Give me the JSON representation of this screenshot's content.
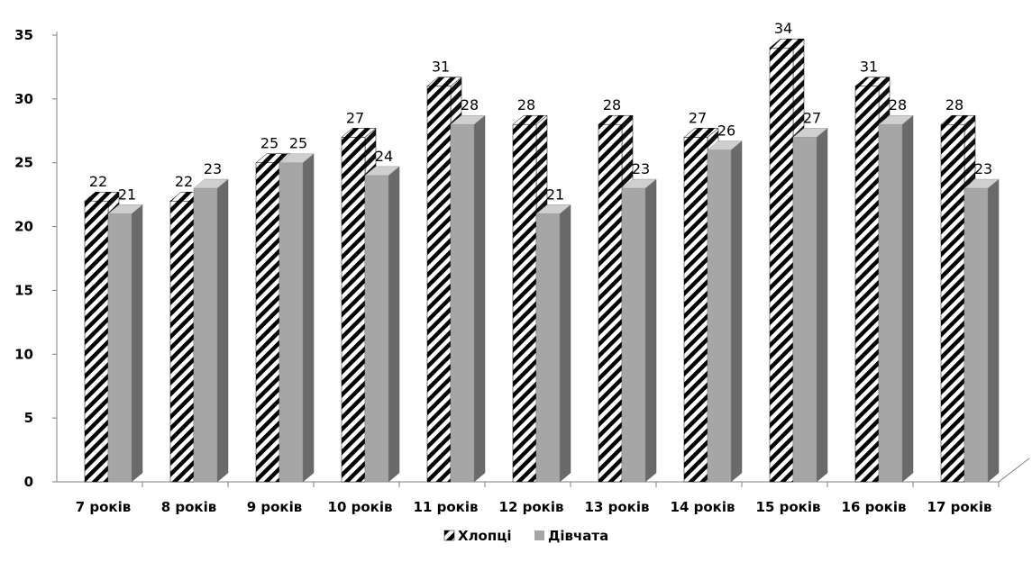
{
  "chart_data": {
    "type": "bar",
    "categories": [
      "7 років",
      "8 років",
      "9 років",
      "10 років",
      "11 років",
      "12 років",
      "13 років",
      "14 років",
      "15 років",
      "16 років",
      "17 років"
    ],
    "series": [
      {
        "name": "Хлопці",
        "values": [
          22,
          22,
          25,
          27,
          31,
          28,
          28,
          27,
          34,
          31,
          28
        ],
        "pattern": "diagonal-hatch",
        "color": "#000000"
      },
      {
        "name": "Дівчата",
        "values": [
          21,
          23,
          25,
          24,
          28,
          21,
          23,
          26,
          27,
          28,
          23
        ],
        "color": "#a6a6a6"
      }
    ],
    "yticks": [
      "0",
      "5",
      "10",
      "15",
      "20",
      "25",
      "30",
      "35"
    ],
    "ylim": [
      0,
      35
    ],
    "grid": false,
    "legend_position": "bottom",
    "style": "3d-columns"
  }
}
